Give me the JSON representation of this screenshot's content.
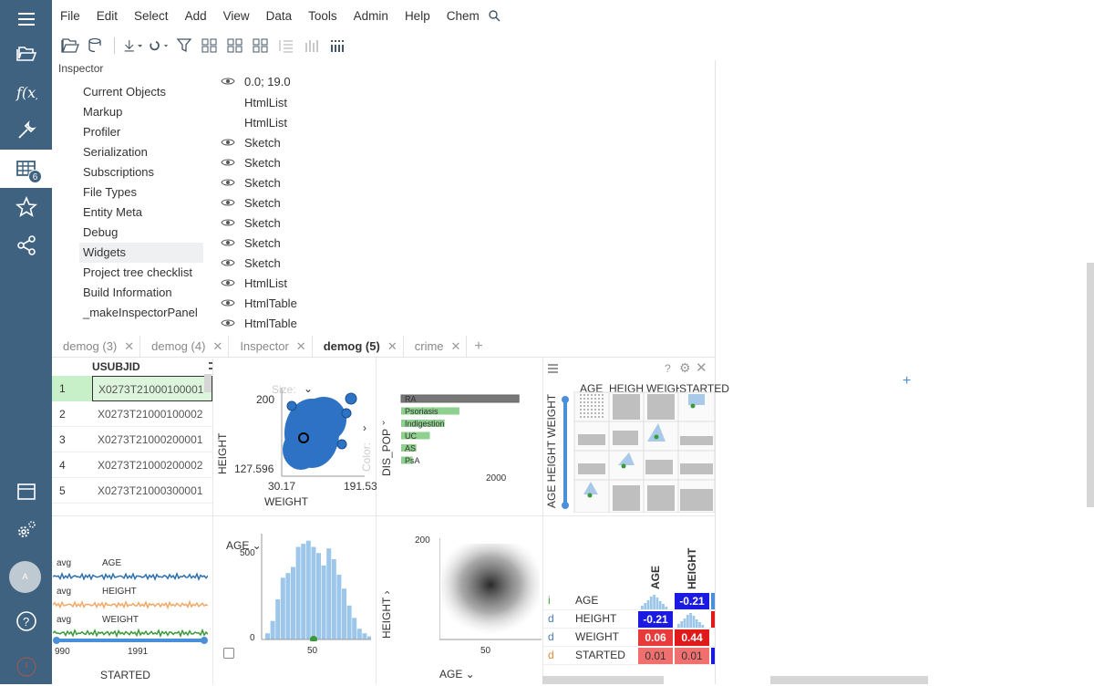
{
  "sidebar": {
    "tables_badge": "6",
    "avatar": "A"
  },
  "menu": [
    "File",
    "Edit",
    "Select",
    "Add",
    "View",
    "Data",
    "Tools",
    "Admin",
    "Help",
    "Chem"
  ],
  "inspector": {
    "title": "Inspector",
    "items": [
      "Current Objects",
      "Markup",
      "Profiler",
      "Serialization",
      "Subscriptions",
      "File Types",
      "Entity Meta",
      "Debug",
      "Widgets",
      "Project tree checklist",
      "Build Information",
      "_makeInspectorPanel"
    ],
    "selected": "Widgets"
  },
  "widgets": {
    "first": "0.0; 19.0",
    "items": [
      {
        "eye": false,
        "label": "HtmlList"
      },
      {
        "eye": false,
        "label": "HtmlList"
      },
      {
        "eye": true,
        "label": "Sketch"
      },
      {
        "eye": true,
        "label": "Sketch"
      },
      {
        "eye": true,
        "label": "Sketch"
      },
      {
        "eye": true,
        "label": "Sketch"
      },
      {
        "eye": true,
        "label": "Sketch"
      },
      {
        "eye": true,
        "label": "Sketch"
      },
      {
        "eye": true,
        "label": "Sketch"
      },
      {
        "eye": true,
        "label": "HtmlList"
      },
      {
        "eye": true,
        "label": "HtmlTable"
      },
      {
        "eye": true,
        "label": "HtmlTable"
      }
    ]
  },
  "tabs": [
    {
      "label": "demog (3)",
      "active": false
    },
    {
      "label": "demog (4)",
      "active": false
    },
    {
      "label": "Inspector",
      "active": false
    },
    {
      "label": "demog (5)",
      "active": true
    },
    {
      "label": "crime",
      "active": false
    }
  ],
  "grid": {
    "column": "USUBJID",
    "rows": [
      {
        "n": "1",
        "v": "X0273T21000100001"
      },
      {
        "n": "2",
        "v": "X0273T21000100002"
      },
      {
        "n": "3",
        "v": "X0273T21000200001"
      },
      {
        "n": "4",
        "v": "X0273T21000200002"
      },
      {
        "n": "5",
        "v": "X0273T21000300001"
      }
    ]
  },
  "scatter": {
    "size_label": "Size:",
    "color_label": "Color:",
    "y_label": "HEIGHT",
    "x_label": "WEIGHT",
    "y_max": "200",
    "y_min": "127.596",
    "x_min": "30.17",
    "x_max": "191.53"
  },
  "bar": {
    "y_label": "DIS_POP",
    "categories": [
      "RA",
      "Psoriasis",
      "Indigestion",
      "UC",
      "AS",
      "PsA"
    ],
    "values": [
      2870,
      1420,
      1060,
      700,
      370,
      280
    ],
    "tick": "2000"
  },
  "matrix": {
    "cols": [
      "AGE",
      "HEIGHT",
      "WEIGHT",
      "STARTED"
    ],
    "rows": "AGE HEIGHT WEIGHT STARTED"
  },
  "lines": {
    "rows": [
      {
        "agg": "avg",
        "name": "AGE",
        "color": "#2c6fad"
      },
      {
        "agg": "avg",
        "name": "HEIGHT",
        "color": "#f0a868"
      },
      {
        "agg": "avg",
        "name": "WEIGHT",
        "color": "#3a9a3a"
      }
    ],
    "ticks": [
      "990",
      "1991"
    ],
    "x_label": "STARTED"
  },
  "histogram": {
    "column": "AGE",
    "y_ticks": [
      "500",
      "0"
    ],
    "x_tick": "50",
    "values": [
      40,
      120,
      260,
      400,
      430,
      470,
      600,
      620,
      640,
      600,
      560,
      480,
      590,
      520,
      420,
      330,
      220,
      140,
      70,
      40,
      20
    ]
  },
  "density": {
    "y_label": "HEIGHT",
    "x_label": "AGE",
    "y_tick": "200",
    "x_tick": "50"
  },
  "correlation": {
    "headers": [
      "AGE",
      "HEIGHT"
    ],
    "rows": [
      {
        "type": "i",
        "name": "AGE",
        "c2": "-0.21"
      },
      {
        "type": "d",
        "name": "HEIGHT",
        "c1": "-0.21"
      },
      {
        "type": "d",
        "name": "WEIGHT",
        "c1": "0.06",
        "c2": "0.44"
      },
      {
        "type": "d",
        "name": "STARTED",
        "c1": "0.01",
        "c2": "0.01"
      }
    ]
  }
}
